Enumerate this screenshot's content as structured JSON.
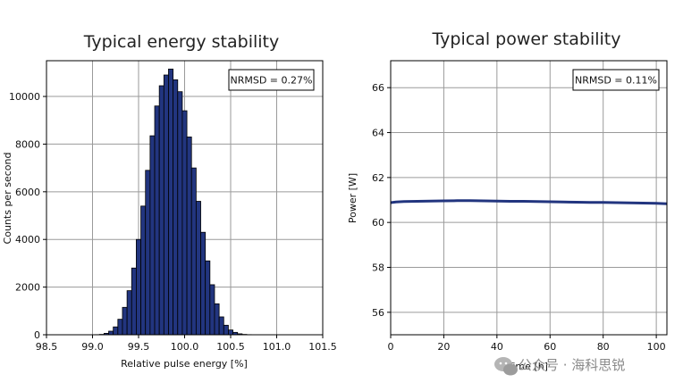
{
  "chart_data": [
    {
      "type": "bar",
      "title": "Typical energy stability",
      "xlabel": "Relative pulse energy [%]",
      "ylabel": "Counts per second",
      "xlim": [
        98.5,
        101.5
      ],
      "ylim": [
        0,
        11500
      ],
      "xticks": [
        "98.5",
        "99.0",
        "99.5",
        "100.0",
        "100.5",
        "101.0",
        "101.5"
      ],
      "yticks": [
        "0",
        "2000",
        "4000",
        "6000",
        "8000",
        "10000"
      ],
      "grid": true,
      "annotation": "NRMSD = 0.27%",
      "bin_width": 0.05,
      "x": [
        99.05,
        99.1,
        99.15,
        99.2,
        99.25,
        99.3,
        99.35,
        99.4,
        99.45,
        99.5,
        99.55,
        99.6,
        99.65,
        99.7,
        99.75,
        99.8,
        99.85,
        99.9,
        99.95,
        100.0,
        100.05,
        100.1,
        100.15,
        100.2,
        100.25,
        100.3,
        100.35,
        100.4,
        100.45,
        100.5,
        100.55,
        100.6,
        100.65,
        100.7,
        100.75,
        100.8,
        100.85,
        100.9,
        100.95
      ],
      "values": [
        5,
        15,
        60,
        150,
        330,
        650,
        1150,
        1850,
        2800,
        4000,
        5400,
        6900,
        8350,
        9600,
        10450,
        10900,
        11150,
        10700,
        10200,
        9400,
        8300,
        7000,
        5600,
        4300,
        3100,
        2100,
        1300,
        750,
        400,
        200,
        100,
        40,
        15,
        5,
        2,
        1,
        0,
        0,
        0
      ]
    },
    {
      "type": "line",
      "title": "Typical power stability",
      "xlabel": "Time [h]",
      "ylabel": "Power [W]",
      "xlim": [
        0,
        104
      ],
      "ylim": [
        55,
        67.2
      ],
      "xticks": [
        "0",
        "20",
        "40",
        "60",
        "80",
        "100"
      ],
      "yticks": [
        "56",
        "58",
        "60",
        "62",
        "64",
        "66"
      ],
      "grid": true,
      "annotation": "NRMSD = 0.11%",
      "series": [
        {
          "color": "#22357f",
          "x": [
            0,
            2,
            5,
            10,
            15,
            20,
            25,
            30,
            35,
            40,
            45,
            50,
            55,
            60,
            65,
            70,
            75,
            80,
            85,
            90,
            95,
            100,
            104
          ],
          "values": [
            60.88,
            60.91,
            60.93,
            60.94,
            60.95,
            60.96,
            60.97,
            60.97,
            60.96,
            60.95,
            60.94,
            60.94,
            60.93,
            60.92,
            60.91,
            60.9,
            60.89,
            60.89,
            60.88,
            60.87,
            60.86,
            60.85,
            60.83
          ]
        }
      ]
    }
  ],
  "watermark": {
    "icon": "wechat-icon",
    "text": "公众号 · 海科思锐"
  }
}
